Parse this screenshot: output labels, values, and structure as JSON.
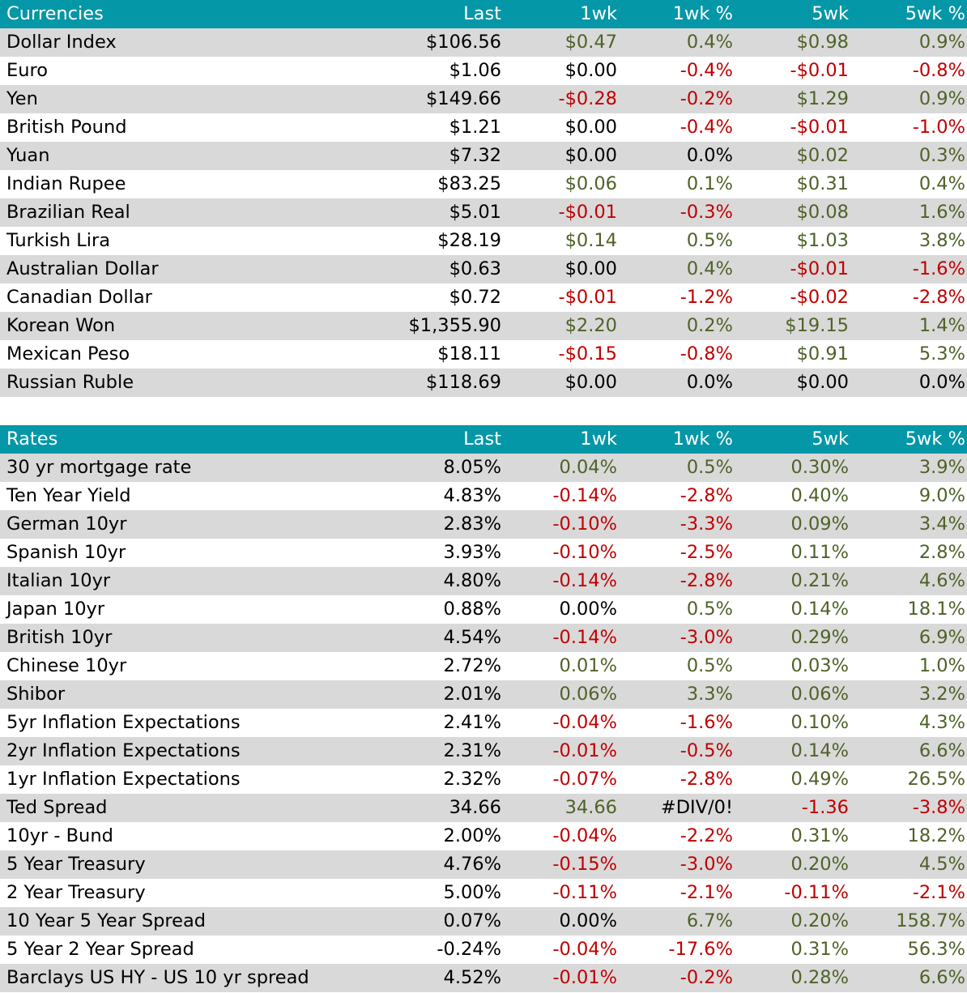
{
  "currencies": {
    "headers": [
      "Currencies",
      "Last",
      "1wk",
      "1wk %",
      "5wk",
      "5wk %"
    ],
    "rows": [
      {
        "name": "Dollar Index",
        "last": "$106.56",
        "wk1": "$0.47",
        "wk1_pct": "0.4%",
        "wk5": "$0.98",
        "wk5_pct": "0.9%"
      },
      {
        "name": "Euro",
        "last": "$1.06",
        "wk1": "$0.00",
        "wk1_pct": "-0.4%",
        "wk5": "-$0.01",
        "wk5_pct": "-0.8%"
      },
      {
        "name": "Yen",
        "last": "$149.66",
        "wk1": "-$0.28",
        "wk1_pct": "-0.2%",
        "wk5": "$1.29",
        "wk5_pct": "0.9%"
      },
      {
        "name": "British Pound",
        "last": "$1.21",
        "wk1": "$0.00",
        "wk1_pct": "-0.4%",
        "wk5": "-$0.01",
        "wk5_pct": "-1.0%"
      },
      {
        "name": "Yuan",
        "last": "$7.32",
        "wk1": "$0.00",
        "wk1_pct": "0.0%",
        "wk5": "$0.02",
        "wk5_pct": "0.3%"
      },
      {
        "name": "Indian Rupee",
        "last": "$83.25",
        "wk1": "$0.06",
        "wk1_pct": "0.1%",
        "wk5": "$0.31",
        "wk5_pct": "0.4%"
      },
      {
        "name": "Brazilian Real",
        "last": "$5.01",
        "wk1": "-$0.01",
        "wk1_pct": "-0.3%",
        "wk5": "$0.08",
        "wk5_pct": "1.6%"
      },
      {
        "name": "Turkish Lira",
        "last": "$28.19",
        "wk1": "$0.14",
        "wk1_pct": "0.5%",
        "wk5": "$1.03",
        "wk5_pct": "3.8%"
      },
      {
        "name": "Australian Dollar",
        "last": "$0.63",
        "wk1": "$0.00",
        "wk1_pct": "0.4%",
        "wk5": "-$0.01",
        "wk5_pct": "-1.6%"
      },
      {
        "name": "Canadian Dollar",
        "last": "$0.72",
        "wk1": "-$0.01",
        "wk1_pct": "-1.2%",
        "wk5": "-$0.02",
        "wk5_pct": "-2.8%"
      },
      {
        "name": "Korean Won",
        "last": "$1,355.90",
        "wk1": "$2.20",
        "wk1_pct": "0.2%",
        "wk5": "$19.15",
        "wk5_pct": "1.4%"
      },
      {
        "name": "Mexican Peso",
        "last": "$18.11",
        "wk1": "-$0.15",
        "wk1_pct": "-0.8%",
        "wk5": "$0.91",
        "wk5_pct": "5.3%"
      },
      {
        "name": "Russian Ruble",
        "last": "$118.69",
        "wk1": "$0.00",
        "wk1_pct": "0.0%",
        "wk5": "$0.00",
        "wk5_pct": "0.0%"
      }
    ]
  },
  "rates": {
    "headers": [
      "Rates",
      "Last",
      "1wk",
      "1wk %",
      "5wk",
      "5wk %"
    ],
    "rows": [
      {
        "name": "30 yr mortgage rate",
        "last": "8.05%",
        "wk1": "0.04%",
        "wk1_pct": "0.5%",
        "wk5": "0.30%",
        "wk5_pct": "3.9%"
      },
      {
        "name": "Ten Year Yield",
        "last": "4.83%",
        "wk1": "-0.14%",
        "wk1_pct": "-2.8%",
        "wk5": "0.40%",
        "wk5_pct": "9.0%"
      },
      {
        "name": "German 10yr",
        "last": "2.83%",
        "wk1": "-0.10%",
        "wk1_pct": "-3.3%",
        "wk5": "0.09%",
        "wk5_pct": "3.4%"
      },
      {
        "name": "Spanish 10yr",
        "last": "3.93%",
        "wk1": "-0.10%",
        "wk1_pct": "-2.5%",
        "wk5": "0.11%",
        "wk5_pct": "2.8%"
      },
      {
        "name": "Italian 10yr",
        "last": "4.80%",
        "wk1": "-0.14%",
        "wk1_pct": "-2.8%",
        "wk5": "0.21%",
        "wk5_pct": "4.6%"
      },
      {
        "name": "Japan 10yr",
        "last": "0.88%",
        "wk1": "0.00%",
        "wk1_pct": "0.5%",
        "wk5": "0.14%",
        "wk5_pct": "18.1%"
      },
      {
        "name": "British 10yr",
        "last": "4.54%",
        "wk1": "-0.14%",
        "wk1_pct": "-3.0%",
        "wk5": "0.29%",
        "wk5_pct": "6.9%"
      },
      {
        "name": "Chinese 10yr",
        "last": "2.72%",
        "wk1": "0.01%",
        "wk1_pct": "0.5%",
        "wk5": "0.03%",
        "wk5_pct": "1.0%"
      },
      {
        "name": "Shibor",
        "last": "2.01%",
        "wk1": "0.06%",
        "wk1_pct": "3.3%",
        "wk5": "0.06%",
        "wk5_pct": "3.2%"
      },
      {
        "name": "5yr Inflation Expectations",
        "last": "2.41%",
        "wk1": "-0.04%",
        "wk1_pct": "-1.6%",
        "wk5": "0.10%",
        "wk5_pct": "4.3%"
      },
      {
        "name": "2yr Inflation Expectations",
        "last": "2.31%",
        "wk1": "-0.01%",
        "wk1_pct": "-0.5%",
        "wk5": "0.14%",
        "wk5_pct": "6.6%"
      },
      {
        "name": "1yr Inflation Expectations",
        "last": "2.32%",
        "wk1": "-0.07%",
        "wk1_pct": "-2.8%",
        "wk5": "0.49%",
        "wk5_pct": "26.5%"
      },
      {
        "name": "Ted Spread",
        "last": "34.66",
        "wk1": "34.66",
        "wk1_pct": "#DIV/0!",
        "wk5": "-1.36",
        "wk5_pct": "-3.8%"
      },
      {
        "name": "10yr - Bund",
        "last": "2.00%",
        "wk1": "-0.04%",
        "wk1_pct": "-2.2%",
        "wk5": "0.31%",
        "wk5_pct": "18.2%"
      },
      {
        "name": "5 Year Treasury",
        "last": "4.76%",
        "wk1": "-0.15%",
        "wk1_pct": "-3.0%",
        "wk5": "0.20%",
        "wk5_pct": "4.5%"
      },
      {
        "name": "2 Year Treasury",
        "last": "5.00%",
        "wk1": "-0.11%",
        "wk1_pct": "-2.1%",
        "wk5": "-0.11%",
        "wk5_pct": "-2.1%"
      },
      {
        "name": "10 Year 5 Year Spread",
        "last": "0.07%",
        "wk1": "0.00%",
        "wk1_pct": "6.7%",
        "wk5": "0.20%",
        "wk5_pct": "158.7%"
      },
      {
        "name": "5 Year 2 Year Spread",
        "last": "-0.24%",
        "wk1": "-0.04%",
        "wk1_pct": "-17.6%",
        "wk5": "0.31%",
        "wk5_pct": "56.3%"
      },
      {
        "name": "Barclays US HY - US 10 yr spread",
        "last": "4.52%",
        "wk1": "-0.01%",
        "wk1_pct": "-0.2%",
        "wk5": "0.28%",
        "wk5_pct": "6.6%"
      }
    ]
  },
  "colors": {
    "header_bg": "#0497a7",
    "header_text": "#ffffff",
    "band_bg": "#d9d9d9",
    "positive": "#4f6228",
    "negative": "#c00000",
    "neutral": "#000000"
  }
}
